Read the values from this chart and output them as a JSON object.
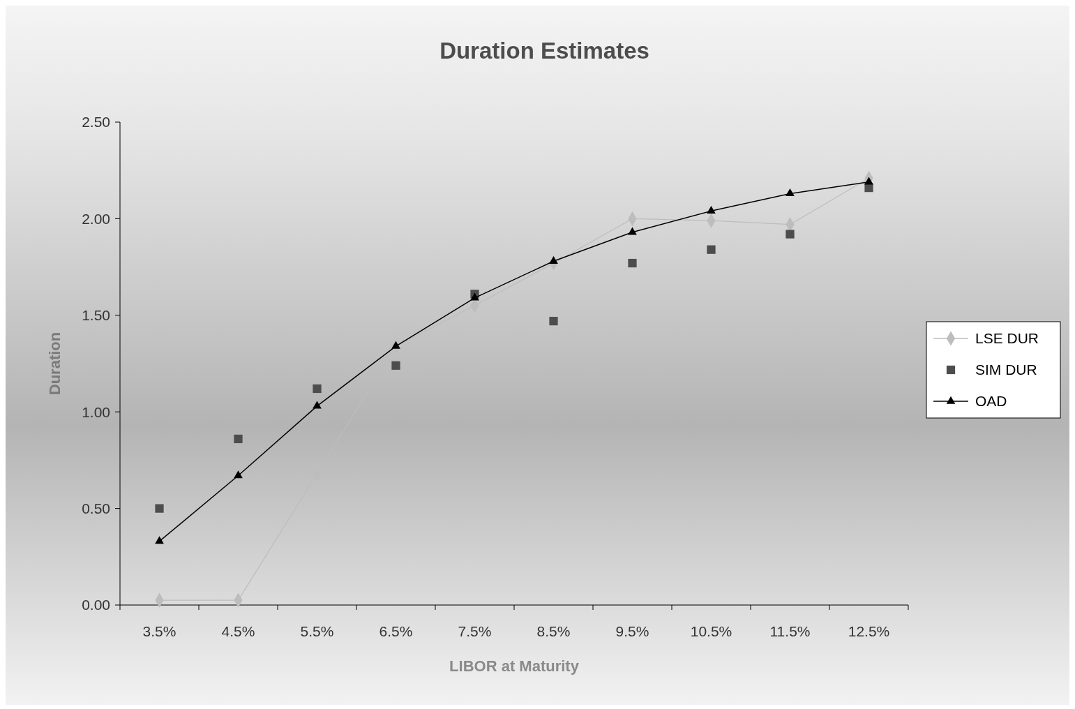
{
  "chart_data": {
    "type": "line",
    "title": "Duration Estimates",
    "xlabel": "LIBOR at Maturity",
    "ylabel": "Duration",
    "categories": [
      "3.5%",
      "4.5%",
      "5.5%",
      "6.5%",
      "7.5%",
      "8.5%",
      "9.5%",
      "10.5%",
      "11.5%",
      "12.5%"
    ],
    "ylim": [
      0,
      2.5
    ],
    "yticks": [
      {
        "value": 0,
        "label": "0.00"
      },
      {
        "value": 0.5,
        "label": "0.50"
      },
      {
        "value": 1,
        "label": "1.00"
      },
      {
        "value": 1.5,
        "label": "1.50"
      },
      {
        "value": 2,
        "label": "2.00"
      },
      {
        "value": 2.5,
        "label": "2.50"
      }
    ],
    "grid": false,
    "legend": "right",
    "series": [
      {
        "name": "LSE DUR",
        "marker": "diamond",
        "color": "#bdbdbd",
        "values": [
          0.025,
          0.025,
          0.68,
          1.34,
          1.55,
          1.77,
          2.0,
          1.99,
          1.97,
          2.21
        ]
      },
      {
        "name": "SIM DUR",
        "type": "scatter",
        "marker": "square",
        "color": "#4d4d4d",
        "values": [
          0.5,
          0.86,
          1.12,
          1.24,
          1.61,
          1.47,
          1.77,
          1.84,
          1.92,
          2.16
        ]
      },
      {
        "name": "OAD",
        "marker": "triangle",
        "color": "#000000",
        "values": [
          0.33,
          0.67,
          1.03,
          1.34,
          1.59,
          1.78,
          1.93,
          2.04,
          2.13,
          2.19
        ]
      }
    ]
  }
}
